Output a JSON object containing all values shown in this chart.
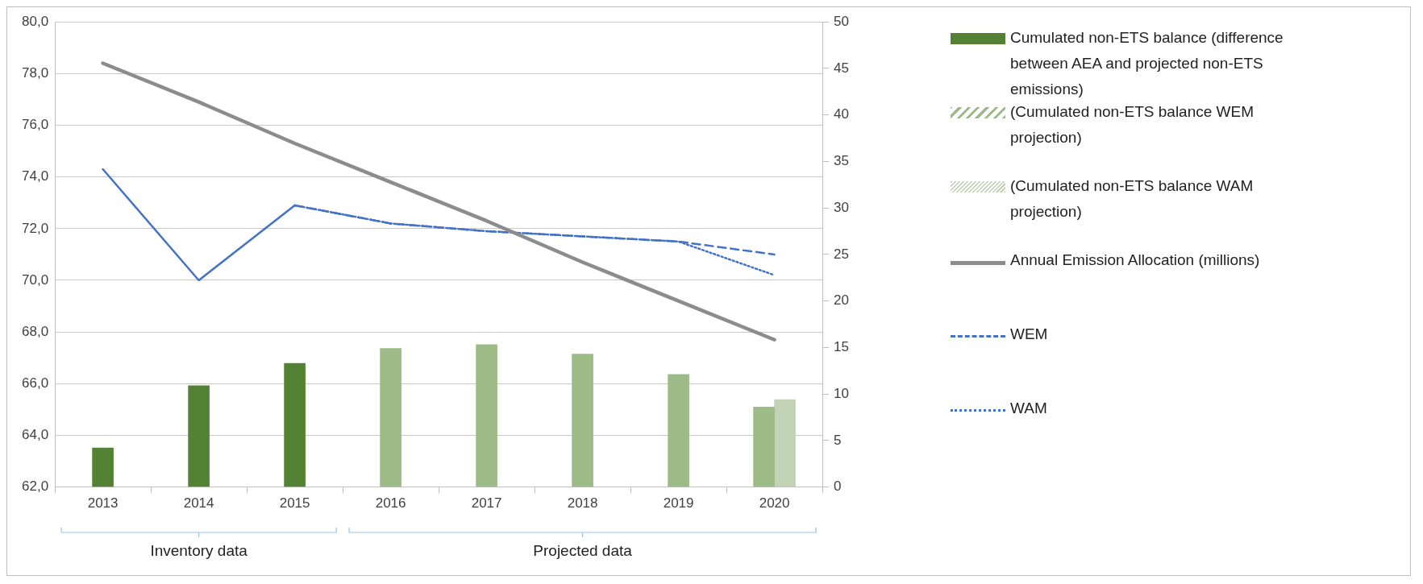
{
  "chart_data": {
    "type": "bar",
    "categories": [
      "2013",
      "2014",
      "2015",
      "2016",
      "2017",
      "2018",
      "2019",
      "2020"
    ],
    "series": [
      {
        "name": "Cumulated non-ETS balance (difference between AEA and projected non-ETS emissions)",
        "axis": "y2",
        "color": "#548235",
        "values": [
          4.2,
          10.9,
          13.3,
          null,
          null,
          null,
          null,
          null
        ]
      },
      {
        "name": "(Cumulated non-ETS balance WEM projection)",
        "axis": "y2",
        "color": "#9dbb86",
        "values": [
          null,
          null,
          null,
          14.9,
          15.3,
          14.3,
          12.1,
          8.6
        ]
      },
      {
        "name": "(Cumulated non-ETS balance WAM projection)",
        "axis": "y2",
        "color": "#c3d3b6",
        "values": [
          null,
          null,
          null,
          null,
          null,
          null,
          null,
          9.4
        ]
      },
      {
        "name": "Annual Emission Allocation (millions)",
        "type": "line",
        "color": "#8c8c8c",
        "line_style": "solid",
        "values": [
          78.4,
          76.9,
          75.3,
          73.8,
          72.3,
          70.7,
          69.2,
          67.7
        ]
      },
      {
        "type": "line",
        "color": "#4472c4",
        "line_style": "solid",
        "values": [
          74.3,
          70.0,
          72.9,
          null,
          null,
          null,
          null,
          null
        ]
      },
      {
        "name": "WEM",
        "type": "line",
        "color": "#4472c4",
        "line_style": "dashed",
        "values": [
          null,
          null,
          72.9,
          72.2,
          71.9,
          71.7,
          71.5,
          71.0
        ]
      },
      {
        "name": "WAM",
        "type": "line",
        "color": "#4472c4",
        "line_style": "dotted",
        "values": [
          null,
          null,
          72.9,
          72.2,
          71.9,
          71.7,
          71.5,
          70.2
        ]
      }
    ],
    "ylim": [
      62,
      80
    ],
    "yticks": [
      {
        "value": 62,
        "label": "62,0"
      },
      {
        "value": 64,
        "label": "64,0"
      },
      {
        "value": 66,
        "label": "66,0"
      },
      {
        "value": 68,
        "label": "68,0"
      },
      {
        "value": 70,
        "label": "70,0"
      },
      {
        "value": 72,
        "label": "72,0"
      },
      {
        "value": 74,
        "label": "74,0"
      },
      {
        "value": 76,
        "label": "76,0"
      },
      {
        "value": 78,
        "label": "78,0"
      },
      {
        "value": 80,
        "label": "80,0"
      }
    ],
    "y2lim": [
      0,
      50
    ],
    "y2ticks": [
      0,
      5,
      10,
      15,
      20,
      25,
      30,
      35,
      40,
      45,
      50
    ],
    "grid": "y",
    "legend": "right",
    "marker": "none",
    "annotations": [
      "Inventory data",
      "Projected data"
    ]
  }
}
